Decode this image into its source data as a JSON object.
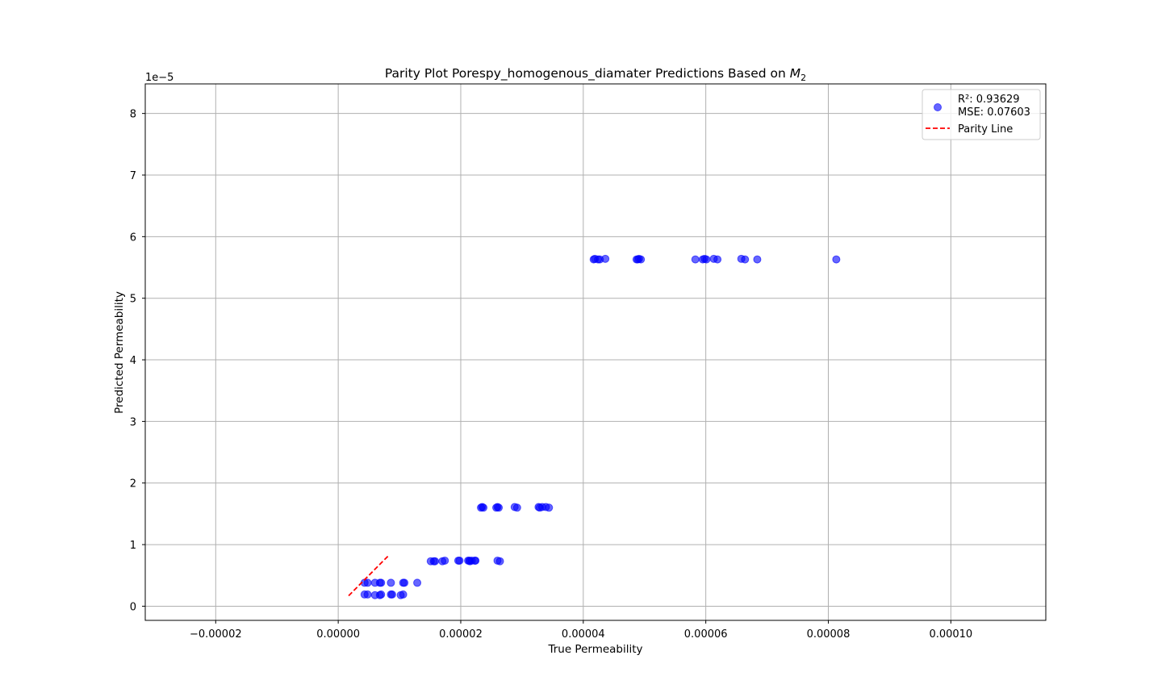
{
  "chart_data": {
    "type": "scatter",
    "title_prefix": "Parity Plot Porespy_homogenous_diamater Predictions Based on ",
    "title_math_base": "M",
    "title_math_sub": "2",
    "xlabel": "True Permeability",
    "ylabel": "Predicted Permeability",
    "y_offset_text": "1e−5",
    "xlim": [
      -3.15e-05,
      0.0001155
    ],
    "ylim": [
      -2.3e-06,
      8.48e-05
    ],
    "x_ticks": [
      -2e-05,
      0.0,
      2e-05,
      4e-05,
      6e-05,
      8e-05,
      0.0001
    ],
    "x_tick_labels": [
      "−0.00002",
      "0.00000",
      "0.00002",
      "0.00004",
      "0.00006",
      "0.00008",
      "0.00010"
    ],
    "y_ticks": [
      0,
      1e-05,
      2e-05,
      3e-05,
      4e-05,
      5e-05,
      6e-05,
      7e-05,
      8e-05
    ],
    "y_tick_labels": [
      "0",
      "1",
      "2",
      "3",
      "4",
      "5",
      "6",
      "7",
      "8"
    ],
    "grid": true,
    "legend_position": "top-right",
    "legend": {
      "points_label_line1": "R²: 0.93629",
      "points_label_line2": "MSE: 0.07603",
      "line_label": "Parity Line"
    },
    "series": [
      {
        "kind": "scatter",
        "color": "#0000ff",
        "alpha": 0.6,
        "x": [
          4.3e-06,
          4.8e-06,
          6e-06,
          6.8e-06,
          7e-06,
          8.6e-06,
          8.8e-06,
          1.02e-05,
          1.06e-05,
          4.3e-06,
          4.8e-06,
          6e-06,
          6.8e-06,
          7e-06,
          8.6e-06,
          1.06e-05,
          1.08e-05,
          1.29e-05,
          1.51e-05,
          1.56e-05,
          1.58e-05,
          1.7e-05,
          1.74e-05,
          1.96e-05,
          1.98e-05,
          2.12e-05,
          2.14e-05,
          2.15e-05,
          2.18e-05,
          2.23e-05,
          2.24e-05,
          2.6e-05,
          2.64e-05,
          2.33e-05,
          2.35e-05,
          2.37e-05,
          2.58e-05,
          2.6e-05,
          2.62e-05,
          2.88e-05,
          2.92e-05,
          3.27e-05,
          3.29e-05,
          3.33e-05,
          3.39e-05,
          3.44e-05,
          4.17e-05,
          4.19e-05,
          4.24e-05,
          4.27e-05,
          4.36e-05,
          4.87e-05,
          4.89e-05,
          4.91e-05,
          4.94e-05,
          5.83e-05,
          5.95e-05,
          5.98e-05,
          6.01e-05,
          6.13e-05,
          6.19e-05,
          6.58e-05,
          6.64e-05,
          6.84e-05,
          8.13e-05
        ],
        "y": [
          1.9e-06,
          1.9e-06,
          1.8e-06,
          1.8e-06,
          1.9e-06,
          1.9e-06,
          1.9e-06,
          1.8e-06,
          1.9e-06,
          3.8e-06,
          3.8e-06,
          3.8e-06,
          3.8e-06,
          3.8e-06,
          3.8e-06,
          3.8e-06,
          3.8e-06,
          3.8e-06,
          7.3e-06,
          7.3e-06,
          7.3e-06,
          7.3e-06,
          7.4e-06,
          7.4e-06,
          7.4e-06,
          7.4e-06,
          7.4e-06,
          7.3e-06,
          7.4e-06,
          7.4e-06,
          7.4e-06,
          7.4e-06,
          7.3e-06,
          1.6e-05,
          1.61e-05,
          1.6e-05,
          1.6e-05,
          1.61e-05,
          1.6e-05,
          1.61e-05,
          1.6e-05,
          1.61e-05,
          1.6e-05,
          1.61e-05,
          1.61e-05,
          1.6e-05,
          5.63e-05,
          5.64e-05,
          5.63e-05,
          5.63e-05,
          5.64e-05,
          5.63e-05,
          5.63e-05,
          5.64e-05,
          5.63e-05,
          5.63e-05,
          5.63e-05,
          5.64e-05,
          5.63e-05,
          5.64e-05,
          5.63e-05,
          5.64e-05,
          5.63e-05,
          5.63e-05,
          5.63e-05
        ]
      },
      {
        "kind": "parity-line",
        "color": "#ff0000",
        "dash": true,
        "x": [
          1.7e-06,
          8.1e-06
        ],
        "y": [
          1.7e-06,
          8.1e-06
        ]
      }
    ]
  }
}
